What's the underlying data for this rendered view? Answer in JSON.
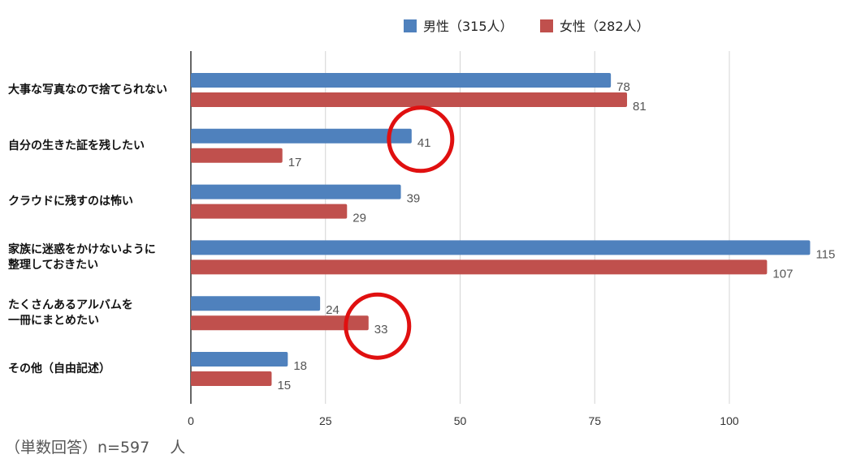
{
  "chart_data": {
    "type": "bar",
    "orientation": "horizontal",
    "categories": [
      [
        "大事な写真なので捨てられない"
      ],
      [
        "自分の生きた証を残したい"
      ],
      [
        "クラウドに残すのは怖い"
      ],
      [
        "家族に迷惑をかけないように",
        "整理しておきたい"
      ],
      [
        "たくさんあるアルバムを",
        "一冊にまとめたい"
      ],
      [
        "その他（自由記述）"
      ]
    ],
    "series": [
      {
        "name": "男性（315人）",
        "color": "#4f81bd",
        "values": [
          78,
          41,
          39,
          115,
          24,
          18
        ]
      },
      {
        "name": "女性（282人）",
        "color": "#c0504d",
        "values": [
          81,
          17,
          29,
          107,
          33,
          15
        ]
      }
    ],
    "xlim": [
      0,
      115
    ],
    "xticks": [
      "0",
      "25",
      "50",
      "75",
      "100"
    ],
    "xtick_values": [
      0,
      25,
      50,
      75,
      100
    ],
    "grid": true,
    "legend": "top-center",
    "highlights": [
      {
        "category_index": 1,
        "series_index": 0
      },
      {
        "category_index": 4,
        "series_index": 1
      }
    ],
    "highlight_color": "#e01010"
  },
  "footnote": "（単数回答）n=597　 人"
}
